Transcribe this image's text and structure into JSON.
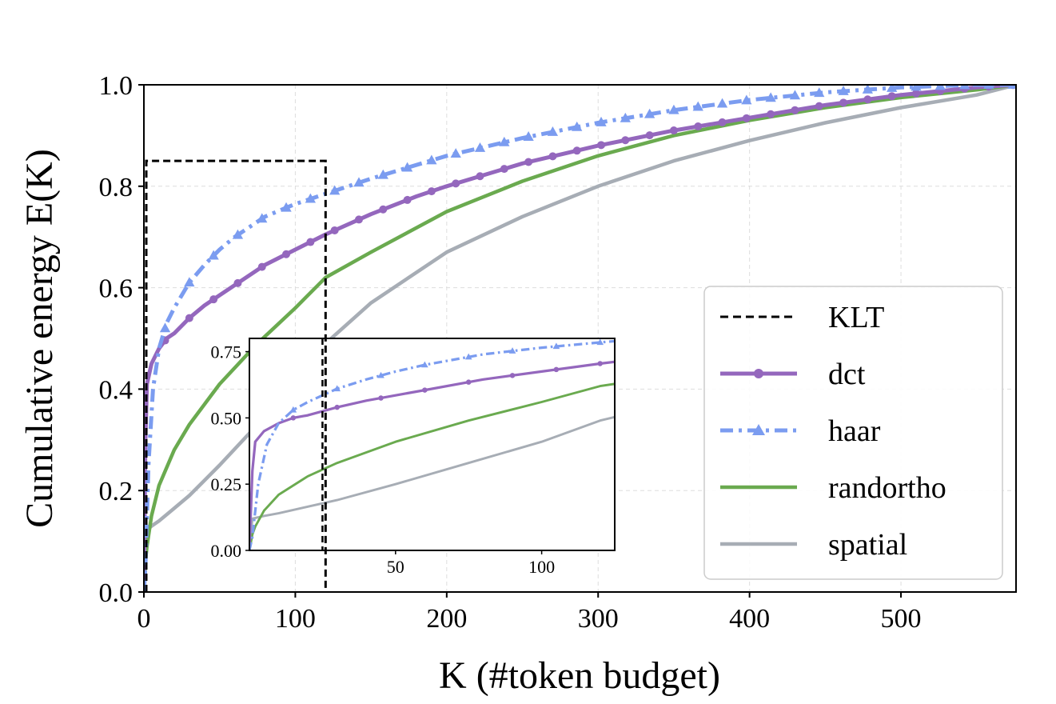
{
  "chart_data": {
    "type": "line",
    "title": "",
    "xlabel": "K (#token budget)",
    "ylabel": "Cumulative energy E(K)",
    "xlim": [
      0,
      576
    ],
    "ylim": [
      0,
      1.0
    ],
    "xticks": [
      0,
      100,
      200,
      300,
      400,
      500
    ],
    "yticks": [
      0.0,
      0.2,
      0.4,
      0.6,
      0.8,
      1.0
    ],
    "grid": true,
    "legend_position": "center-right",
    "klt_box": {
      "k": 120,
      "energy": 0.85
    },
    "series": [
      {
        "name": "KLT",
        "style": "dashed",
        "color": "#000000",
        "x": [],
        "y": []
      },
      {
        "name": "dct",
        "style": "solid-circle-markers",
        "color": "#9467bd",
        "x": [
          1,
          2,
          5,
          10,
          15,
          20,
          30,
          40,
          50,
          60,
          80,
          100,
          120,
          150,
          180,
          200,
          250,
          300,
          350,
          400,
          450,
          500,
          550,
          576
        ],
        "y": [
          0.3,
          0.41,
          0.45,
          0.48,
          0.5,
          0.51,
          0.54,
          0.565,
          0.585,
          0.605,
          0.645,
          0.675,
          0.705,
          0.745,
          0.78,
          0.8,
          0.845,
          0.88,
          0.91,
          0.935,
          0.96,
          0.98,
          0.995,
          1.0
        ]
      },
      {
        "name": "haar",
        "style": "dashdot-triangle-markers",
        "color": "#7b9cf0",
        "x": [
          1,
          3,
          6,
          10,
          15,
          20,
          30,
          40,
          50,
          60,
          80,
          100,
          120,
          150,
          200,
          250,
          300,
          350,
          400,
          450,
          500,
          550,
          576
        ],
        "y": [
          0.05,
          0.25,
          0.4,
          0.48,
          0.53,
          0.56,
          0.61,
          0.645,
          0.675,
          0.7,
          0.74,
          0.765,
          0.785,
          0.815,
          0.86,
          0.895,
          0.925,
          0.95,
          0.97,
          0.985,
          0.995,
          1.0,
          1.0
        ]
      },
      {
        "name": "randortho",
        "style": "solid",
        "color": "#6aaa4f",
        "x": [
          1,
          2,
          5,
          10,
          20,
          30,
          50,
          75,
          100,
          120,
          150,
          200,
          250,
          300,
          350,
          400,
          450,
          500,
          550,
          576
        ],
        "y": [
          0.06,
          0.09,
          0.15,
          0.21,
          0.28,
          0.33,
          0.41,
          0.49,
          0.56,
          0.62,
          0.67,
          0.75,
          0.81,
          0.86,
          0.9,
          0.93,
          0.955,
          0.975,
          0.99,
          1.0
        ]
      },
      {
        "name": "spatial",
        "style": "solid",
        "color": "#a7adb5",
        "x": [
          1,
          5,
          10,
          20,
          30,
          50,
          75,
          100,
          120,
          150,
          200,
          250,
          300,
          350,
          400,
          450,
          500,
          550,
          576
        ],
        "y": [
          0.12,
          0.13,
          0.14,
          0.165,
          0.19,
          0.25,
          0.33,
          0.41,
          0.49,
          0.57,
          0.67,
          0.74,
          0.8,
          0.85,
          0.89,
          0.925,
          0.955,
          0.98,
          1.0
        ]
      }
    ],
    "inset": {
      "xlim": [
        0,
        125
      ],
      "ylim": [
        0,
        0.8
      ],
      "xticks": [
        50,
        100
      ],
      "yticks": [
        "0.00",
        "0.25",
        "0.50",
        "0.75"
      ],
      "klt_k": 25
    }
  }
}
